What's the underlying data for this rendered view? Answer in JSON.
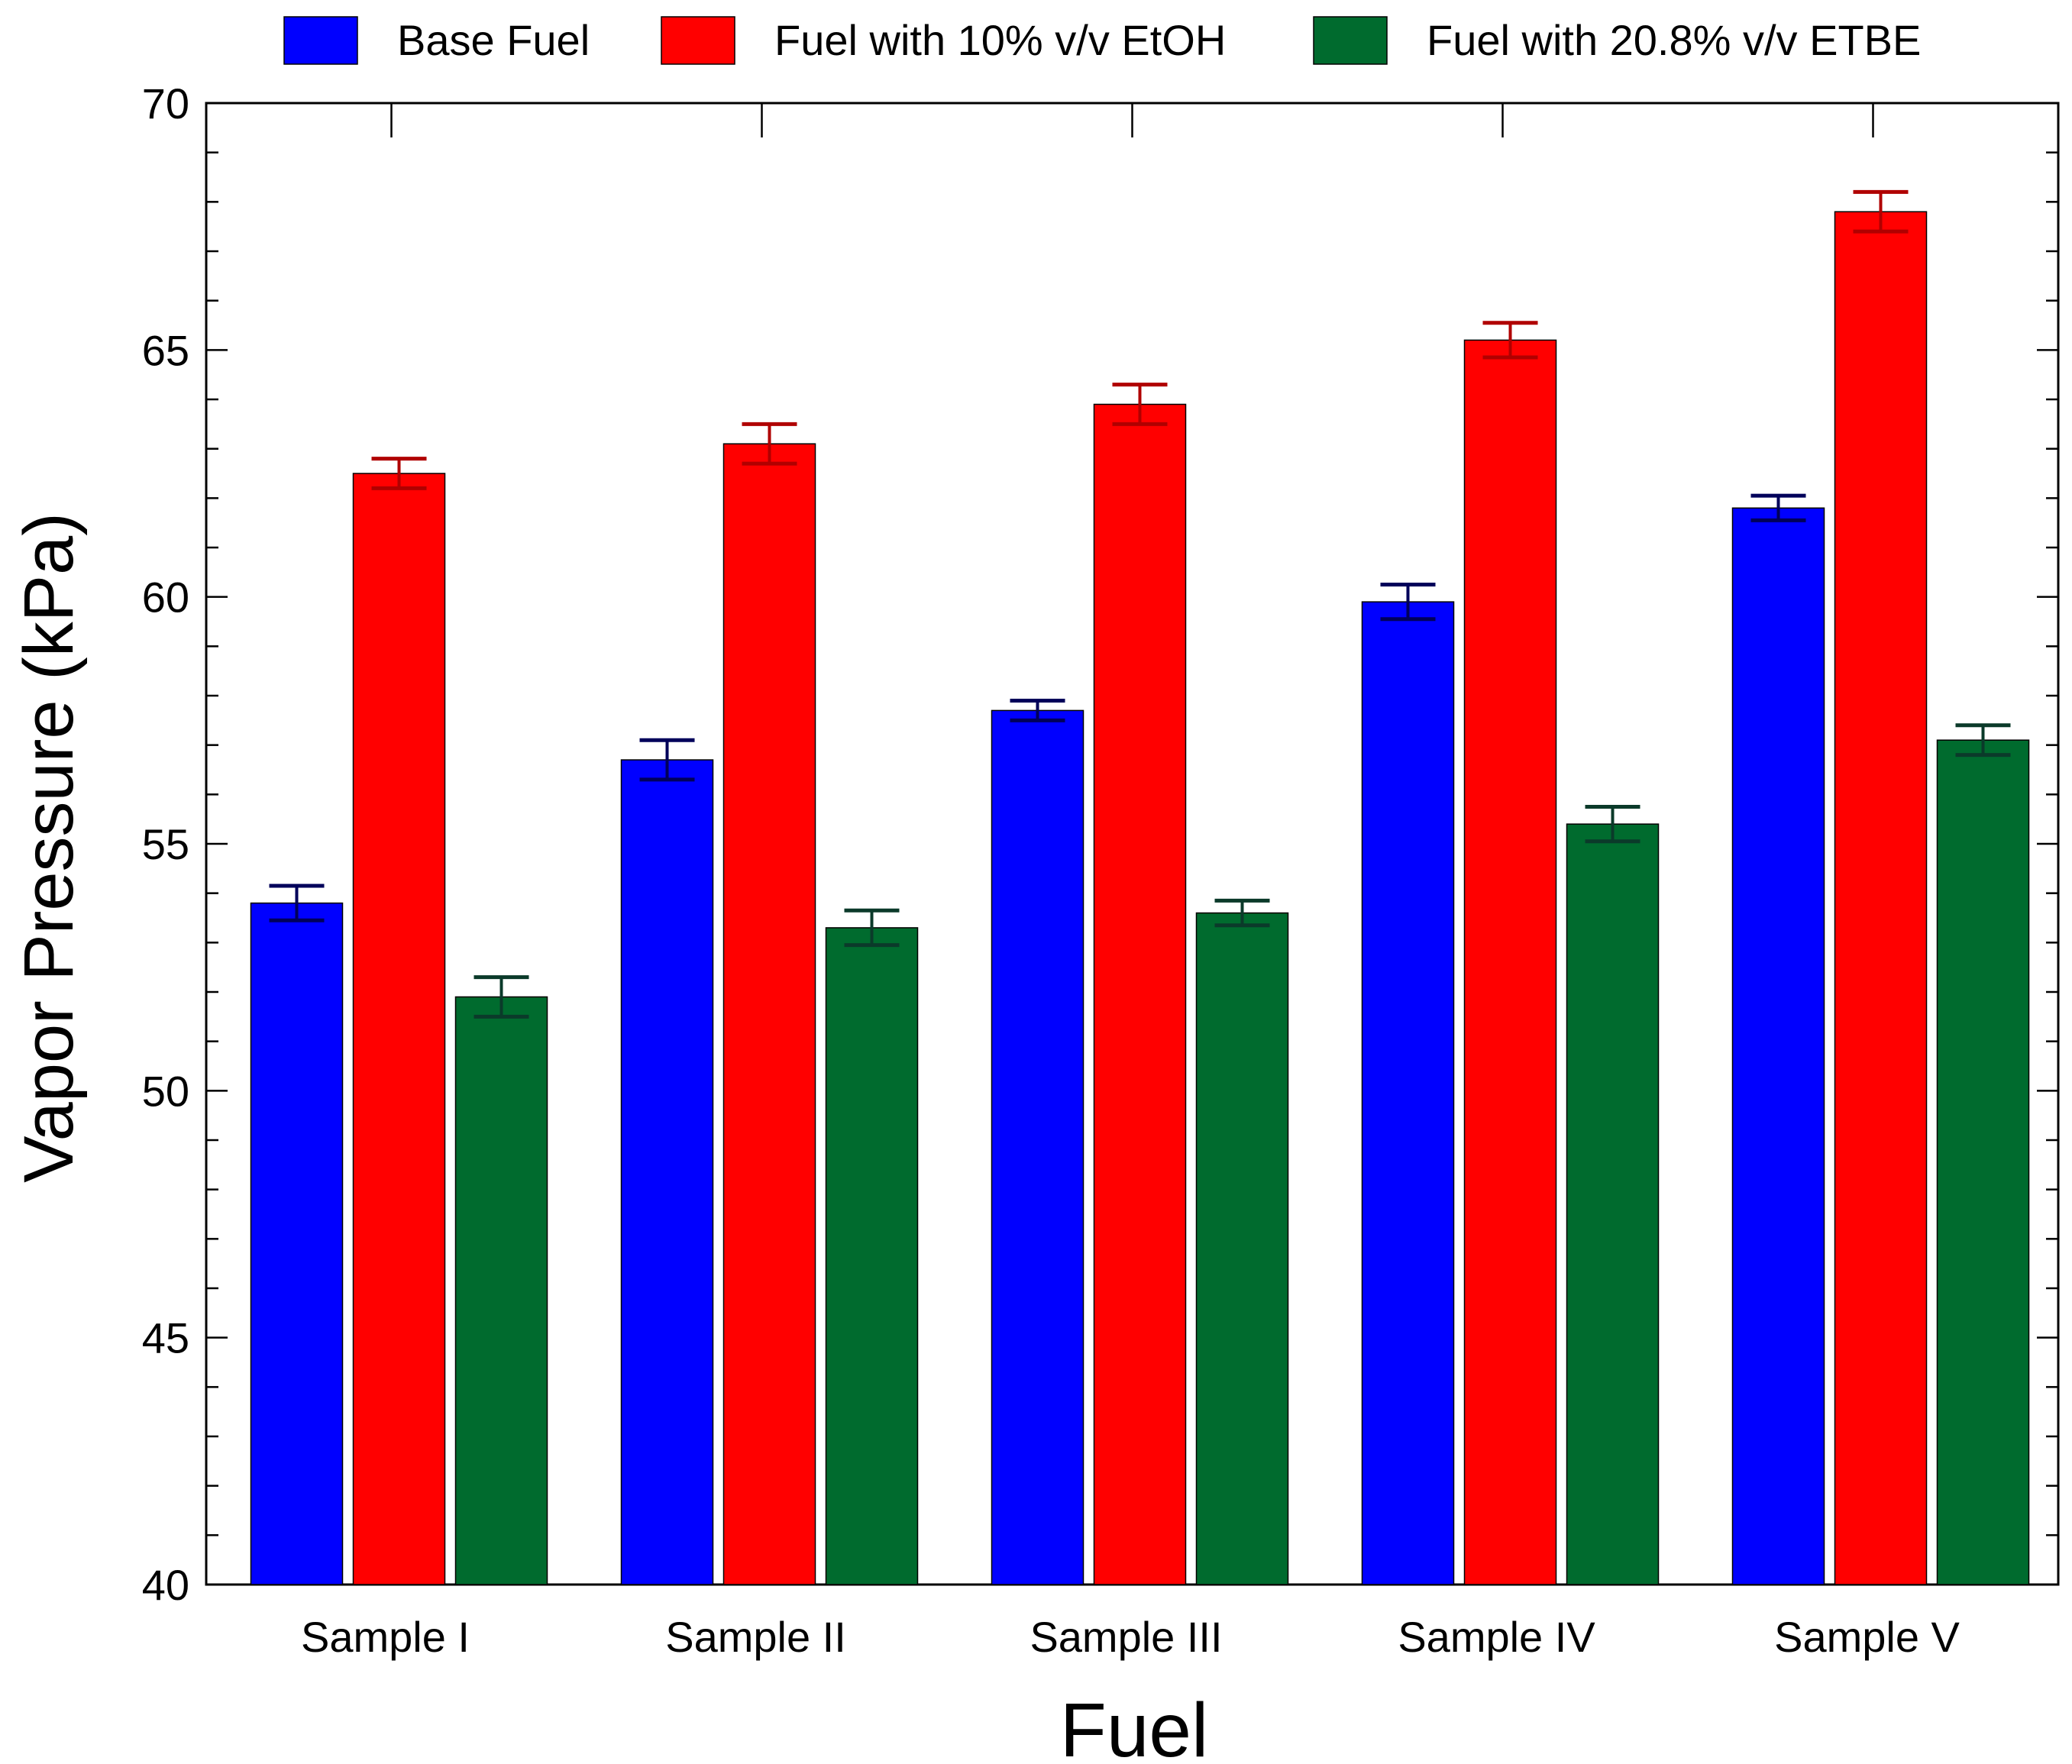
{
  "chart_data": {
    "type": "bar",
    "xlabel": "Fuel",
    "ylabel": "Vapor Pressure (kPa)",
    "ylim": [
      40,
      70
    ],
    "yticks": [
      40,
      45,
      50,
      55,
      60,
      65,
      70
    ],
    "categories": [
      "Sample I",
      "Sample II",
      "Sample III",
      "Sample IV",
      "Sample V"
    ],
    "legend_position": "top",
    "series": [
      {
        "name": "Base Fuel",
        "color": "#0000ff",
        "error_color": "#00005a",
        "values": [
          53.8,
          56.7,
          57.7,
          59.9,
          61.8
        ],
        "errors": [
          0.35,
          0.4,
          0.2,
          0.35,
          0.25
        ]
      },
      {
        "name": "Fuel with 10% v/v EtOH",
        "color": "#ff0000",
        "error_color": "#b00000",
        "values": [
          62.5,
          63.1,
          63.9,
          65.2,
          67.8
        ],
        "errors": [
          0.3,
          0.4,
          0.4,
          0.35,
          0.4
        ]
      },
      {
        "name": "Fuel with 20.8% v/v ETBE",
        "color": "#006b2e",
        "error_color": "#0b3a2a",
        "values": [
          51.9,
          53.3,
          53.6,
          55.4,
          57.1
        ],
        "errors": [
          0.4,
          0.35,
          0.25,
          0.35,
          0.3
        ]
      }
    ]
  }
}
